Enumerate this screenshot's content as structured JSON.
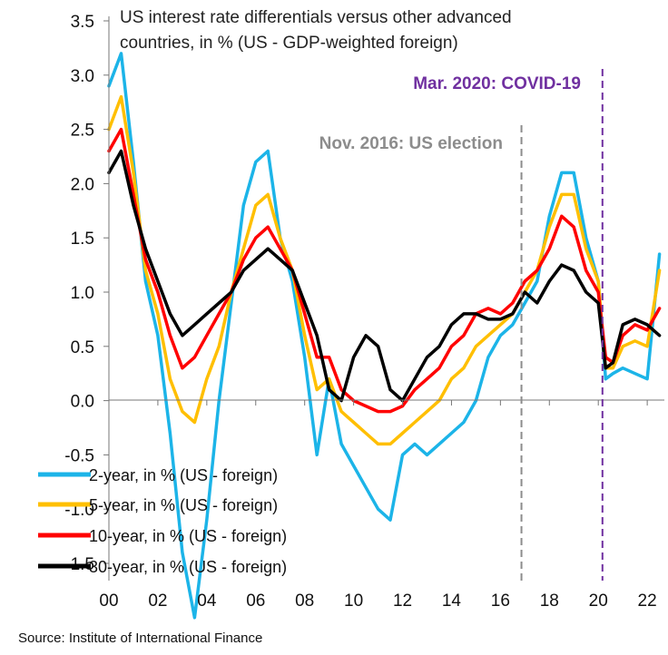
{
  "chart_data": {
    "type": "line",
    "title": "US interest rate differentials versus other advanced countries, in % (US - GDP-weighted foreign)",
    "title_lines": [
      "US interest rate differentials versus other advanced",
      "countries, in % (US - GDP-weighted foreign)"
    ],
    "xlabel": "",
    "ylabel": "",
    "xlim": [
      2000,
      2022.7
    ],
    "ylim": [
      -1.5,
      3.5
    ],
    "x_ticks": [
      2000,
      2002,
      2004,
      2006,
      2008,
      2010,
      2012,
      2014,
      2016,
      2018,
      2020,
      2022
    ],
    "x_tick_labels": [
      "00",
      "02",
      "04",
      "06",
      "08",
      "10",
      "12",
      "14",
      "16",
      "18",
      "20",
      "22"
    ],
    "y_ticks": [
      3.5,
      3.0,
      2.5,
      2.0,
      1.5,
      1.0,
      0.5,
      0.0,
      -0.5,
      -1.0,
      -1.5
    ],
    "y_tick_labels": [
      "3.5",
      "3.0",
      "2.5",
      "2.0",
      "1.5",
      "1.0",
      "0.5",
      "0.0",
      "-0.5",
      "-1.0",
      "-1.5"
    ],
    "grid": false,
    "legend_position": "bottom-left",
    "annotations": [
      {
        "x": 2016.86,
        "label": "Nov. 2016: US election",
        "color": "#8c8c8c"
      },
      {
        "x": 2020.17,
        "label": "Mar. 2020: COVID-19",
        "color": "#7030a0"
      }
    ],
    "series": [
      {
        "name": "2-year, in % (US - foreign)",
        "color": "#1cb4e8",
        "x": [
          2000.0,
          2000.5,
          2001.0,
          2001.5,
          2002.0,
          2002.5,
          2003.0,
          2003.5,
          2004.0,
          2004.5,
          2005.0,
          2005.5,
          2006.0,
          2006.5,
          2007.0,
          2007.5,
          2008.0,
          2008.5,
          2009.0,
          2009.5,
          2010.0,
          2010.5,
          2011.0,
          2011.5,
          2012.0,
          2012.5,
          2013.0,
          2013.5,
          2014.0,
          2014.5,
          2015.0,
          2015.5,
          2016.0,
          2016.5,
          2017.0,
          2017.5,
          2018.0,
          2018.5,
          2019.0,
          2019.5,
          2020.0,
          2020.3,
          2020.6,
          2021.0,
          2021.5,
          2022.0,
          2022.5
        ],
        "values": [
          2.9,
          3.2,
          2.2,
          1.1,
          0.6,
          -0.3,
          -1.4,
          -2.0,
          -1.1,
          0.0,
          0.9,
          1.8,
          2.2,
          2.3,
          1.5,
          1.1,
          0.4,
          -0.5,
          0.2,
          -0.4,
          -0.6,
          -0.8,
          -1.0,
          -1.1,
          -0.5,
          -0.4,
          -0.5,
          -0.4,
          -0.3,
          -0.2,
          0.0,
          0.4,
          0.6,
          0.7,
          0.9,
          1.1,
          1.7,
          2.1,
          2.1,
          1.5,
          1.1,
          0.2,
          0.25,
          0.3,
          0.25,
          0.2,
          1.35
        ]
      },
      {
        "name": "5-year, in % (US - foreign)",
        "color": "#ffbf00",
        "x": [
          2000.0,
          2000.5,
          2001.0,
          2001.5,
          2002.0,
          2002.5,
          2003.0,
          2003.5,
          2004.0,
          2004.5,
          2005.0,
          2005.5,
          2006.0,
          2006.5,
          2007.0,
          2007.5,
          2008.0,
          2008.5,
          2009.0,
          2009.5,
          2010.0,
          2010.5,
          2011.0,
          2011.5,
          2012.0,
          2012.5,
          2013.0,
          2013.5,
          2014.0,
          2014.5,
          2015.0,
          2015.5,
          2016.0,
          2016.5,
          2017.0,
          2017.5,
          2018.0,
          2018.5,
          2019.0,
          2019.5,
          2020.0,
          2020.3,
          2020.6,
          2021.0,
          2021.5,
          2022.0,
          2022.5
        ],
        "values": [
          2.5,
          2.8,
          2.1,
          1.2,
          0.8,
          0.2,
          -0.1,
          -0.2,
          0.2,
          0.5,
          1.0,
          1.4,
          1.8,
          1.9,
          1.5,
          1.2,
          0.6,
          0.1,
          0.2,
          -0.1,
          -0.2,
          -0.3,
          -0.4,
          -0.4,
          -0.3,
          -0.2,
          -0.1,
          0.0,
          0.2,
          0.3,
          0.5,
          0.6,
          0.7,
          0.8,
          1.0,
          1.2,
          1.6,
          1.9,
          1.9,
          1.4,
          1.1,
          0.3,
          0.3,
          0.5,
          0.55,
          0.5,
          1.2
        ]
      },
      {
        "name": "10-year, in % (US - foreign)",
        "color": "#ff0000",
        "x": [
          2000.0,
          2000.5,
          2001.0,
          2001.5,
          2002.0,
          2002.5,
          2003.0,
          2003.5,
          2004.0,
          2004.5,
          2005.0,
          2005.5,
          2006.0,
          2006.5,
          2007.0,
          2007.5,
          2008.0,
          2008.5,
          2009.0,
          2009.5,
          2010.0,
          2010.5,
          2011.0,
          2011.5,
          2012.0,
          2012.5,
          2013.0,
          2013.5,
          2014.0,
          2014.5,
          2015.0,
          2015.5,
          2016.0,
          2016.5,
          2017.0,
          2017.5,
          2018.0,
          2018.5,
          2019.0,
          2019.5,
          2020.0,
          2020.3,
          2020.6,
          2021.0,
          2021.5,
          2022.0,
          2022.5
        ],
        "values": [
          2.3,
          2.5,
          1.9,
          1.3,
          1.0,
          0.6,
          0.3,
          0.4,
          0.6,
          0.8,
          1.0,
          1.3,
          1.5,
          1.6,
          1.4,
          1.2,
          0.8,
          0.4,
          0.4,
          0.1,
          0.0,
          -0.05,
          -0.1,
          -0.1,
          -0.05,
          0.1,
          0.2,
          0.3,
          0.5,
          0.6,
          0.8,
          0.85,
          0.8,
          0.9,
          1.1,
          1.2,
          1.4,
          1.7,
          1.6,
          1.2,
          1.0,
          0.4,
          0.35,
          0.6,
          0.7,
          0.65,
          0.85
        ]
      },
      {
        "name": "30-year, in % (US - foreign)",
        "color": "#000000",
        "x": [
          2000.0,
          2000.5,
          2001.0,
          2001.5,
          2002.0,
          2002.5,
          2003.0,
          2003.5,
          2004.0,
          2004.5,
          2005.0,
          2005.5,
          2006.0,
          2006.5,
          2007.0,
          2007.5,
          2008.0,
          2008.5,
          2009.0,
          2009.5,
          2010.0,
          2010.5,
          2011.0,
          2011.5,
          2012.0,
          2012.5,
          2013.0,
          2013.5,
          2014.0,
          2014.5,
          2015.0,
          2015.5,
          2016.0,
          2016.5,
          2017.0,
          2017.5,
          2018.0,
          2018.5,
          2019.0,
          2019.5,
          2020.0,
          2020.3,
          2020.6,
          2021.0,
          2021.5,
          2022.0,
          2022.5
        ],
        "values": [
          2.1,
          2.3,
          1.8,
          1.4,
          1.1,
          0.8,
          0.6,
          0.7,
          0.8,
          0.9,
          1.0,
          1.2,
          1.3,
          1.4,
          1.3,
          1.2,
          0.9,
          0.6,
          0.1,
          0.0,
          0.4,
          0.6,
          0.5,
          0.1,
          0.0,
          0.2,
          0.4,
          0.5,
          0.7,
          0.8,
          0.8,
          0.75,
          0.75,
          0.8,
          1.0,
          0.9,
          1.1,
          1.25,
          1.2,
          1.0,
          0.9,
          0.3,
          0.35,
          0.7,
          0.75,
          0.7,
          0.6
        ]
      }
    ]
  },
  "source": "Source: Institute of International Finance"
}
